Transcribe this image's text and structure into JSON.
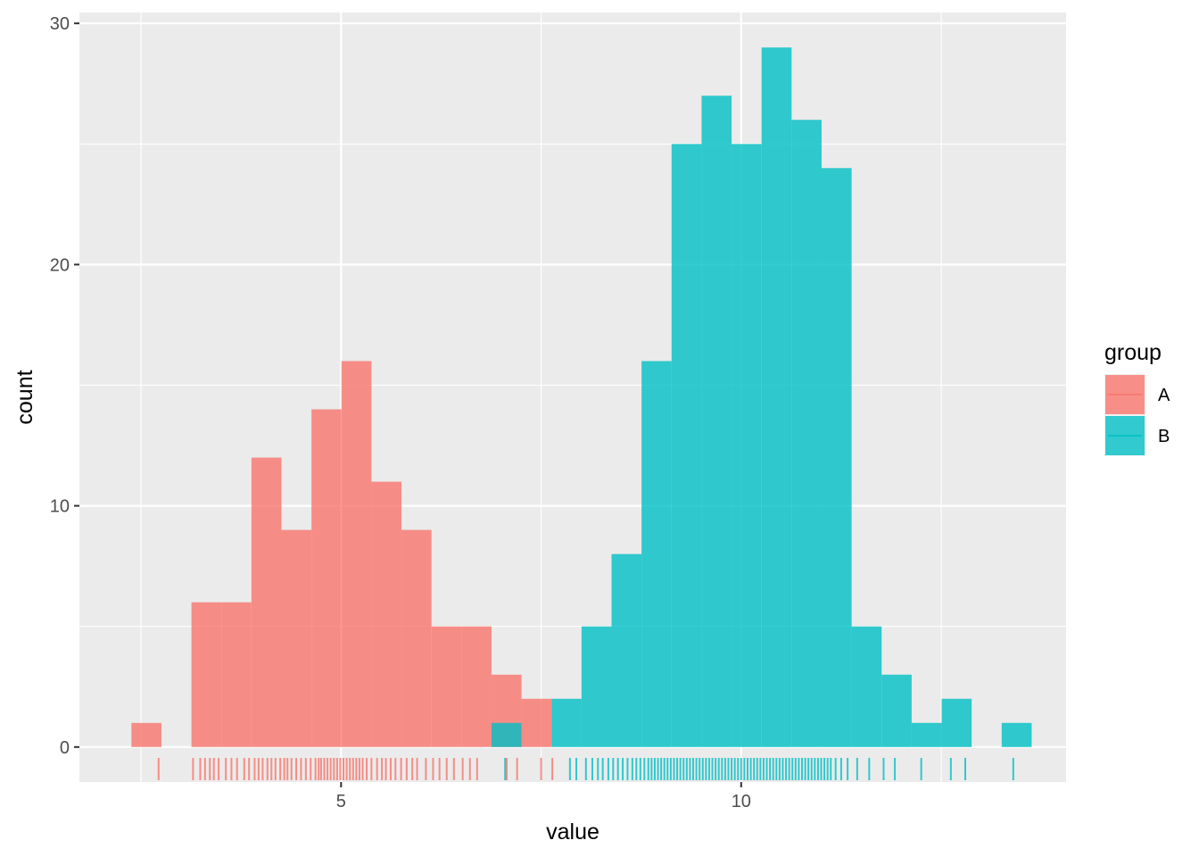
{
  "chart_data": {
    "type": "bar",
    "subtype": "histogram",
    "title": "",
    "xlabel": "value",
    "ylabel": "count",
    "xlim": [
      1.73,
      14.06
    ],
    "ylim": [
      -1.45,
      30.45
    ],
    "x_ticks": [
      5,
      10
    ],
    "y_ticks": [
      0,
      10,
      20,
      30
    ],
    "grid": true,
    "binwidth": 0.375,
    "colors": {
      "A": "#F8766D",
      "B": "#00BFC4"
    },
    "bar_opacity": 0.8,
    "legend": {
      "title": "group",
      "position": "right",
      "entries": [
        "A",
        "B"
      ]
    },
    "series": [
      {
        "name": "A",
        "bins": [
          {
            "x0": 2.38,
            "x1": 2.755,
            "count": 1
          },
          {
            "x0": 3.13,
            "x1": 3.505,
            "count": 6
          },
          {
            "x0": 3.505,
            "x1": 3.88,
            "count": 6
          },
          {
            "x0": 3.88,
            "x1": 4.255,
            "count": 12
          },
          {
            "x0": 4.255,
            "x1": 4.63,
            "count": 9
          },
          {
            "x0": 4.63,
            "x1": 5.005,
            "count": 14
          },
          {
            "x0": 5.005,
            "x1": 5.38,
            "count": 16
          },
          {
            "x0": 5.38,
            "x1": 5.755,
            "count": 11
          },
          {
            "x0": 5.755,
            "x1": 6.13,
            "count": 9
          },
          {
            "x0": 6.13,
            "x1": 6.505,
            "count": 5
          },
          {
            "x0": 6.505,
            "x1": 6.88,
            "count": 5
          },
          {
            "x0": 6.88,
            "x1": 7.255,
            "count": 3
          },
          {
            "x0": 7.255,
            "x1": 7.63,
            "count": 2
          }
        ],
        "rug": [
          2.72,
          3.15,
          3.24,
          3.3,
          3.36,
          3.41,
          3.47,
          3.56,
          3.63,
          3.7,
          3.79,
          3.85,
          3.92,
          3.97,
          4.02,
          4.08,
          4.13,
          4.18,
          4.24,
          4.29,
          4.33,
          4.38,
          4.44,
          4.5,
          4.56,
          4.62,
          4.68,
          4.72,
          4.75,
          4.79,
          4.83,
          4.87,
          4.91,
          4.95,
          4.99,
          5.03,
          5.07,
          5.11,
          5.15,
          5.19,
          5.23,
          5.27,
          5.32,
          5.38,
          5.45,
          5.51,
          5.56,
          5.62,
          5.68,
          5.75,
          5.82,
          5.89,
          5.95,
          6.06,
          6.15,
          6.23,
          6.32,
          6.41,
          6.52,
          6.61,
          6.7,
          7.07,
          7.2,
          7.5,
          7.64
        ]
      },
      {
        "name": "B",
        "bins": [
          {
            "x0": 6.88,
            "x1": 7.255,
            "count": 1
          },
          {
            "x0": 7.63,
            "x1": 8.005,
            "count": 2
          },
          {
            "x0": 8.005,
            "x1": 8.38,
            "count": 5
          },
          {
            "x0": 8.38,
            "x1": 8.755,
            "count": 8
          },
          {
            "x0": 8.755,
            "x1": 9.13,
            "count": 16
          },
          {
            "x0": 9.13,
            "x1": 9.505,
            "count": 25
          },
          {
            "x0": 9.505,
            "x1": 9.88,
            "count": 27
          },
          {
            "x0": 9.88,
            "x1": 10.255,
            "count": 25
          },
          {
            "x0": 10.255,
            "x1": 10.63,
            "count": 29
          },
          {
            "x0": 10.63,
            "x1": 11.005,
            "count": 26
          },
          {
            "x0": 11.005,
            "x1": 11.38,
            "count": 24
          },
          {
            "x0": 11.38,
            "x1": 11.755,
            "count": 5
          },
          {
            "x0": 11.755,
            "x1": 12.13,
            "count": 3
          },
          {
            "x0": 12.13,
            "x1": 12.505,
            "count": 1
          },
          {
            "x0": 12.505,
            "x1": 12.88,
            "count": 2
          },
          {
            "x0": 13.255,
            "x1": 13.63,
            "count": 1
          }
        ],
        "rug": [
          7.05,
          7.86,
          7.94,
          8.06,
          8.14,
          8.21,
          8.27,
          8.34,
          8.4,
          8.46,
          8.52,
          8.58,
          8.64,
          8.69,
          8.74,
          8.79,
          8.84,
          8.88,
          8.92,
          8.96,
          9.0,
          9.04,
          9.08,
          9.12,
          9.16,
          9.2,
          9.24,
          9.28,
          9.32,
          9.36,
          9.4,
          9.44,
          9.48,
          9.52,
          9.56,
          9.6,
          9.64,
          9.68,
          9.72,
          9.76,
          9.8,
          9.84,
          9.88,
          9.92,
          9.96,
          10.0,
          10.04,
          10.08,
          10.12,
          10.16,
          10.2,
          10.24,
          10.28,
          10.32,
          10.36,
          10.4,
          10.44,
          10.48,
          10.52,
          10.56,
          10.6,
          10.64,
          10.68,
          10.72,
          10.76,
          10.8,
          10.84,
          10.88,
          10.92,
          10.96,
          11.0,
          11.04,
          11.08,
          11.12,
          11.18,
          11.25,
          11.33,
          11.45,
          11.6,
          11.78,
          11.92,
          12.25,
          12.62,
          12.8,
          13.4
        ]
      }
    ]
  }
}
